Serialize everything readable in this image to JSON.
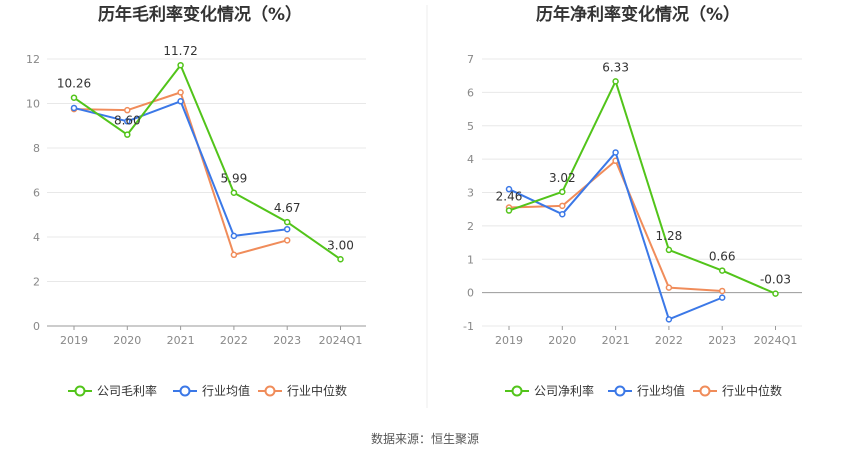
{
  "source_text": "数据来源：恒生聚源",
  "chart_data": [
    {
      "type": "line",
      "title": "历年毛利率变化情况（%）",
      "categories": [
        "2019",
        "2020",
        "2021",
        "2022",
        "2023",
        "2024Q1"
      ],
      "ylim": [
        0,
        12
      ],
      "yticks": [
        0,
        2,
        4,
        6,
        8,
        10,
        12
      ],
      "grid": true,
      "legend_position": "bottom",
      "series": [
        {
          "name": "公司毛利率",
          "color": "#52c41a",
          "values": [
            10.26,
            8.6,
            11.72,
            5.99,
            4.67,
            3.0
          ],
          "labels": [
            "10.26",
            "8.60",
            "11.72",
            "5.99",
            "4.67",
            "3.00"
          ]
        },
        {
          "name": "行业均值",
          "color": "#3b78e7",
          "values": [
            9.8,
            9.2,
            10.1,
            4.05,
            4.35,
            null
          ]
        },
        {
          "name": "行业中位数",
          "color": "#f08c5a",
          "values": [
            9.75,
            9.7,
            10.5,
            3.2,
            3.85,
            null
          ]
        }
      ]
    },
    {
      "type": "line",
      "title": "历年净利率变化情况（%）",
      "categories": [
        "2019",
        "2020",
        "2021",
        "2022",
        "2023",
        "2024Q1"
      ],
      "ylim": [
        -1,
        7
      ],
      "yticks": [
        -1,
        0,
        1,
        2,
        3,
        4,
        5,
        6,
        7
      ],
      "grid": true,
      "legend_position": "bottom",
      "series": [
        {
          "name": "公司净利率",
          "color": "#52c41a",
          "values": [
            2.46,
            3.02,
            6.33,
            1.28,
            0.66,
            -0.03
          ],
          "labels": [
            "2.46",
            "3.02",
            "6.33",
            "1.28",
            "0.66",
            "-0.03"
          ]
        },
        {
          "name": "行业均值",
          "color": "#3b78e7",
          "values": [
            3.1,
            2.35,
            4.2,
            -0.8,
            -0.15,
            null
          ]
        },
        {
          "name": "行业中位数",
          "color": "#f08c5a",
          "values": [
            2.55,
            2.6,
            3.95,
            0.15,
            0.05,
            null
          ]
        }
      ]
    }
  ]
}
